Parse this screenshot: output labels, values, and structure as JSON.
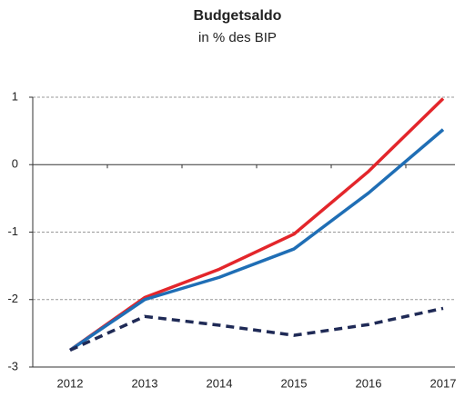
{
  "chart_data": {
    "type": "line",
    "title": "Budgetsaldo",
    "subtitle": "in % des BIP",
    "categories": [
      "2012",
      "2013",
      "2014",
      "2015",
      "2016",
      "2017"
    ],
    "series": [
      {
        "color": "#e3262b",
        "style": "solid",
        "values": [
          -2.75,
          -1.97,
          -1.55,
          -1.03,
          -0.1,
          0.98
        ]
      },
      {
        "color": "#1f6eb5",
        "style": "solid",
        "values": [
          -2.75,
          -2.0,
          -1.67,
          -1.25,
          -0.42,
          0.52
        ]
      },
      {
        "color": "#1f2a56",
        "style": "dashed",
        "values": [
          -2.75,
          -2.25,
          -2.38,
          -2.53,
          -2.37,
          -2.13
        ]
      }
    ],
    "ylim": [
      -3,
      1
    ],
    "yticks": [
      -3,
      -2,
      -1,
      0,
      1
    ],
    "grid": true
  }
}
